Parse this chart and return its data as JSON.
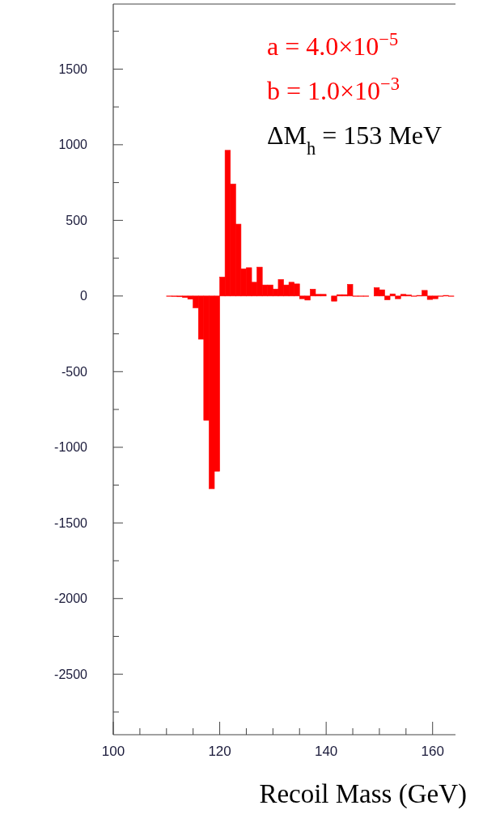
{
  "chart_data": {
    "type": "histogram",
    "xlabel": "Recoil Mass (GeV)",
    "bins": [
      100,
      101,
      102,
      103,
      104,
      105,
      106,
      107,
      108,
      109,
      110,
      111,
      112,
      113,
      114,
      115,
      116,
      117,
      118,
      119,
      120,
      121,
      122,
      123,
      124,
      125,
      126,
      127,
      128,
      129,
      130,
      131,
      132,
      133,
      134,
      135,
      136,
      137,
      138,
      139,
      140,
      141,
      142,
      143,
      144,
      145,
      146,
      147,
      148,
      149,
      150,
      151,
      152,
      153,
      154,
      155,
      156,
      157,
      158,
      159,
      160,
      161,
      162,
      163,
      164
    ],
    "values": [
      0,
      0,
      0,
      0,
      0,
      0,
      0,
      0,
      0,
      0,
      -2,
      -3,
      -5,
      -10,
      -21,
      -78,
      -285,
      -821,
      -1274,
      -1158,
      125,
      963,
      740,
      475,
      180,
      187,
      91,
      191,
      73,
      73,
      46,
      109,
      73,
      91,
      80,
      -18,
      -27,
      45,
      11,
      11,
      0,
      -34,
      9,
      9,
      77,
      -2,
      -2,
      -2,
      0,
      55,
      41,
      -25,
      14,
      -18,
      11,
      7,
      -2,
      4,
      37,
      -23,
      -18,
      -2,
      4,
      -2
    ],
    "color": "#ff0000",
    "xlim": [
      100,
      164.3
    ],
    "ylim": [
      -2900,
      1930
    ],
    "xticks": [
      100,
      {
        "value": 105,
        "label": null
      },
      {
        "value": 110,
        "label": null
      },
      {
        "value": 115,
        "label": null
      },
      120,
      {
        "value": 125,
        "label": null
      },
      {
        "value": 130,
        "label": null
      },
      {
        "value": 135,
        "label": null
      },
      140,
      {
        "value": 145,
        "label": null
      },
      {
        "value": 150,
        "label": null
      },
      {
        "value": 155,
        "label": null
      },
      160
    ],
    "yticks": [
      {
        "value": -2750,
        "label": null
      },
      -2500,
      {
        "value": -2250,
        "label": null
      },
      -2000,
      {
        "value": -1750,
        "label": null
      },
      -1500,
      {
        "value": -1250,
        "label": null
      },
      -1000,
      {
        "value": -750,
        "label": null
      },
      -500,
      {
        "value": -250,
        "label": null
      },
      0,
      {
        "value": 250,
        "label": null
      },
      500,
      {
        "value": 750,
        "label": null
      },
      1000,
      {
        "value": 1250,
        "label": null
      },
      1500,
      {
        "value": 1750,
        "label": null
      }
    ],
    "annotations": [
      "a = 4.0×10$^{−5}$",
      "b = 1.0×10$^{−3}$",
      "ΔM$_{h}$ = 153 MeV"
    ]
  }
}
